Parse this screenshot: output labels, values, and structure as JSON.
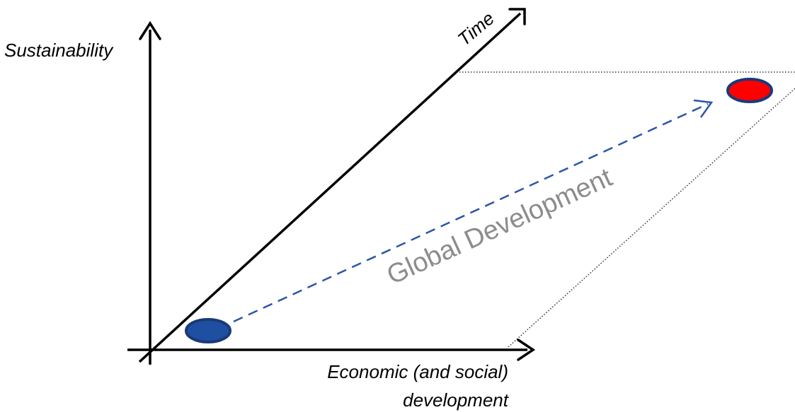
{
  "axes": {
    "y_label": "Sustainability",
    "x_label_line1": "Economic (and social)",
    "x_label_line2": "development",
    "diagonal_label": "Time"
  },
  "trend": {
    "label": "Global Development"
  },
  "colors": {
    "axis": "#000000",
    "trend_arrow": "#2b55a8",
    "trend_text": "#8c8c8c",
    "start_fill": "#1f4fa0",
    "start_stroke": "#1a3a78",
    "end_fill": "#ff0000",
    "end_stroke": "#1a3a78",
    "guide": "#333333"
  }
}
